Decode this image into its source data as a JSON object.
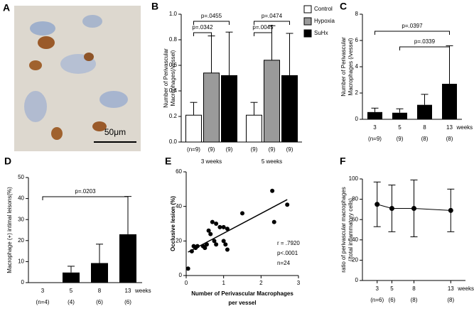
{
  "image_panel": {
    "label": "A",
    "scale_bar": "50μm"
  },
  "chart_data": [
    {
      "type": "grouped_bar",
      "label": "B",
      "y_label": [
        "Number of Perivascular",
        "Macrophages(/vessel)"
      ],
      "categories": [
        "3 weeks",
        "5 weeks"
      ],
      "n_labels": [
        [
          "(n=9)",
          "(9)",
          "(9)"
        ],
        [
          "(9)",
          "(9)",
          "(9)"
        ]
      ],
      "series": [
        {
          "name": "Control",
          "color": "#ffffff",
          "values": [
            0.21,
            0.21
          ],
          "errors": [
            0.1,
            0.1
          ]
        },
        {
          "name": "Hypoxia",
          "color": "#9a9a9a",
          "values": [
            0.54,
            0.64
          ],
          "errors": [
            0.29,
            0.27
          ]
        },
        {
          "name": "SuHx",
          "color": "#000000",
          "values": [
            0.52,
            0.52
          ],
          "errors": [
            0.34,
            0.33
          ]
        }
      ],
      "ylim": [
        0,
        1
      ],
      "yticks": [
        {
          "value": 0,
          "label": "0.0"
        },
        0.2,
        0.4,
        0.6,
        0.8,
        {
          "value": 1,
          "label": "1.0"
        }
      ],
      "annotations": [
        "p=.0455",
        "p=.0342",
        "p=.0474",
        "p=.0045"
      ],
      "legend": "top-right"
    },
    {
      "type": "bar",
      "label": "C",
      "y_label": [
        "Number of Perivascular",
        "Macrophages (/vessel)"
      ],
      "categories": [
        "3",
        "5",
        "8",
        "13"
      ],
      "x_label": "weeks",
      "n_labels": [
        "(n=9)",
        "(9)",
        "(8)",
        "(8)"
      ],
      "values": [
        0.55,
        0.5,
        1.1,
        2.7
      ],
      "errors": [
        0.3,
        0.3,
        0.8,
        2.9
      ],
      "color": "#000000",
      "ylim": [
        0,
        8
      ],
      "yticks": [
        0,
        2,
        4,
        6,
        8
      ],
      "annotations": [
        "p=.0397",
        "p=.0339"
      ]
    },
    {
      "type": "bar",
      "label": "D",
      "y_label": [
        "Macrophage (+) intimal leisons(%)"
      ],
      "categories": [
        "3",
        "5",
        "8",
        "13"
      ],
      "x_label": "weeks",
      "n_labels": [
        "(n=4)",
        "(4)",
        "(6)",
        "(6)"
      ],
      "values": [
        0,
        4.8,
        9.3,
        23
      ],
      "errors": [
        0,
        3,
        9,
        18
      ],
      "color": "#000000",
      "ylim": [
        0,
        50
      ],
      "yticks": [
        0,
        10,
        20,
        30,
        40,
        50
      ],
      "annotations": [
        "p=.0203"
      ]
    },
    {
      "type": "scatter",
      "label": "E",
      "x_label": [
        "Number of Perivascular Macrophages",
        "per vessel"
      ],
      "y_label": [
        "Occlusive lesion (%)"
      ],
      "x": [
        0.05,
        0.15,
        0.2,
        0.25,
        0.3,
        0.45,
        0.5,
        0.55,
        0.6,
        0.65,
        0.7,
        0.75,
        0.8,
        0.8,
        0.9,
        1.0,
        1.0,
        1.05,
        1.1,
        1.1,
        1.5,
        2.3,
        2.35,
        2.7
      ],
      "y": [
        4,
        14,
        17,
        16,
        17,
        17,
        16,
        18,
        26,
        24,
        31,
        20,
        30,
        18,
        28,
        20,
        28,
        18,
        15,
        27,
        36,
        49,
        31,
        41
      ],
      "color": "#000000",
      "xlim": [
        0,
        3
      ],
      "xticks": [
        0,
        1,
        2,
        3
      ],
      "ylim": [
        0,
        60
      ],
      "yticks": [
        0,
        20,
        40,
        60
      ],
      "annotations": [
        "r = .7920",
        "p<.0001",
        "n=24"
      ]
    },
    {
      "type": "line",
      "label": "F",
      "y_label": [
        "ratio of perivascular macrophages",
        "(/total inflammatory cells)"
      ],
      "x": [
        3,
        5,
        8,
        13
      ],
      "values": [
        75,
        71,
        71,
        69
      ],
      "errors": [
        22,
        23,
        28,
        21
      ],
      "color": "#000000",
      "x_label": "weeks",
      "n_labels": [
        "(n=6)",
        "(6)",
        "(8)",
        "(8)"
      ],
      "xlim": [
        1,
        15
      ],
      "xticks": [
        3,
        5,
        8,
        13
      ],
      "ylim": [
        0,
        100
      ],
      "yticks": [
        0,
        20,
        40,
        60,
        80,
        100
      ]
    }
  ]
}
